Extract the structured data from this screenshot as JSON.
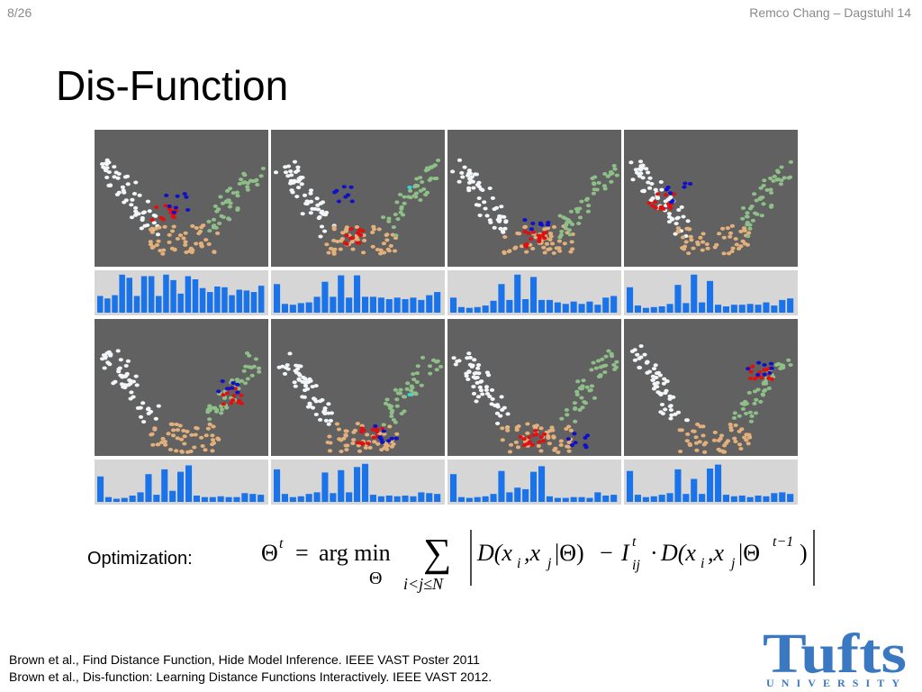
{
  "header": {
    "slide_number": "8/26",
    "author_event": "Remco Chang – Dagstuhl 14"
  },
  "title": "Dis-Function",
  "colors": {
    "panel_bg": "#616161",
    "hist_bg": "#d6d6d6",
    "bar": "#1a73e8",
    "white_cluster": "#f2f6f8",
    "tan_cluster": "#e3b07c",
    "green_cluster": "#8fbf88",
    "blue_points": "#1010c8",
    "red_points": "#e01010",
    "cyan_point": "#30d8d8",
    "logo": "#3b78c2"
  },
  "panels": [
    {
      "hist": [
        0.42,
        0.36,
        0.44,
        0.96,
        0.88,
        0.42,
        0.92,
        0.92,
        0.42,
        0.96,
        0.82,
        0.48,
        0.92,
        0.84,
        0.62,
        0.52,
        0.66,
        0.64,
        0.44,
        0.58,
        0.56,
        0.52,
        0.68
      ]
    },
    {
      "hist": [
        0.72,
        0.22,
        0.2,
        0.24,
        0.26,
        0.4,
        0.78,
        0.4,
        0.94,
        0.38,
        0.94,
        0.4,
        0.4,
        0.38,
        0.34,
        0.38,
        0.34,
        0.38,
        0.32,
        0.44,
        0.52
      ]
    },
    {
      "hist": [
        0.38,
        0.14,
        0.12,
        0.14,
        0.18,
        0.3,
        0.72,
        0.32,
        0.96,
        0.34,
        0.9,
        0.32,
        0.32,
        0.26,
        0.22,
        0.28,
        0.22,
        0.28,
        0.2,
        0.38,
        0.42
      ]
    },
    {
      "hist": [
        0.64,
        0.18,
        0.12,
        0.14,
        0.16,
        0.22,
        0.7,
        0.24,
        0.96,
        0.26,
        0.8,
        0.2,
        0.16,
        0.2,
        0.2,
        0.22,
        0.2,
        0.26,
        0.18,
        0.32,
        0.36
      ]
    },
    {
      "hist": [
        0.64,
        0.12,
        0.08,
        0.1,
        0.16,
        0.24,
        0.7,
        0.18,
        0.82,
        0.28,
        0.76,
        0.92,
        0.16,
        0.12,
        0.12,
        0.14,
        0.12,
        0.12,
        0.22,
        0.2,
        0.18
      ]
    },
    {
      "hist": [
        0.82,
        0.2,
        0.12,
        0.14,
        0.2,
        0.24,
        0.74,
        0.22,
        0.8,
        0.24,
        0.88,
        0.96,
        0.18,
        0.14,
        0.16,
        0.14,
        0.16,
        0.14,
        0.24,
        0.22,
        0.2
      ]
    },
    {
      "hist": [
        0.7,
        0.12,
        0.1,
        0.12,
        0.14,
        0.2,
        0.78,
        0.24,
        0.36,
        0.32,
        0.76,
        0.9,
        0.14,
        0.1,
        0.1,
        0.12,
        0.12,
        0.1,
        0.24,
        0.16,
        0.18
      ]
    },
    {
      "hist": [
        0.78,
        0.18,
        0.12,
        0.14,
        0.18,
        0.22,
        0.82,
        0.2,
        0.58,
        0.2,
        0.84,
        0.94,
        0.18,
        0.14,
        0.16,
        0.12,
        0.16,
        0.14,
        0.22,
        0.24,
        0.2
      ]
    }
  ],
  "optimization_label": "Optimization:",
  "formula": {
    "lhs": "Θ",
    "lhs_sup": "t",
    "equals": "=",
    "operator": "arg min",
    "operator_sub": "Θ",
    "sum_symbol": "∑",
    "sum_sub": "i<j≤N",
    "term1": "D(x",
    "i": "i",
    "comma": ",x",
    "j": "j",
    "theta_close": "|Θ)",
    "minus": "−",
    "I": "I",
    "I_sup": "t",
    "I_sub": "ij",
    "dot": "·",
    "term2_close": "|Θ",
    "theta_sup": "t−1",
    "rparen": ")"
  },
  "references": [
    "Brown et al., Find Distance Function, Hide Model Inference.  IEEE VAST Poster 2011",
    "Brown et al., Dis-function: Learning Distance Functions Interactively. IEEE VAST 2012."
  ],
  "logo": {
    "name": "Tufts",
    "sub": "UNIVERSITY"
  }
}
